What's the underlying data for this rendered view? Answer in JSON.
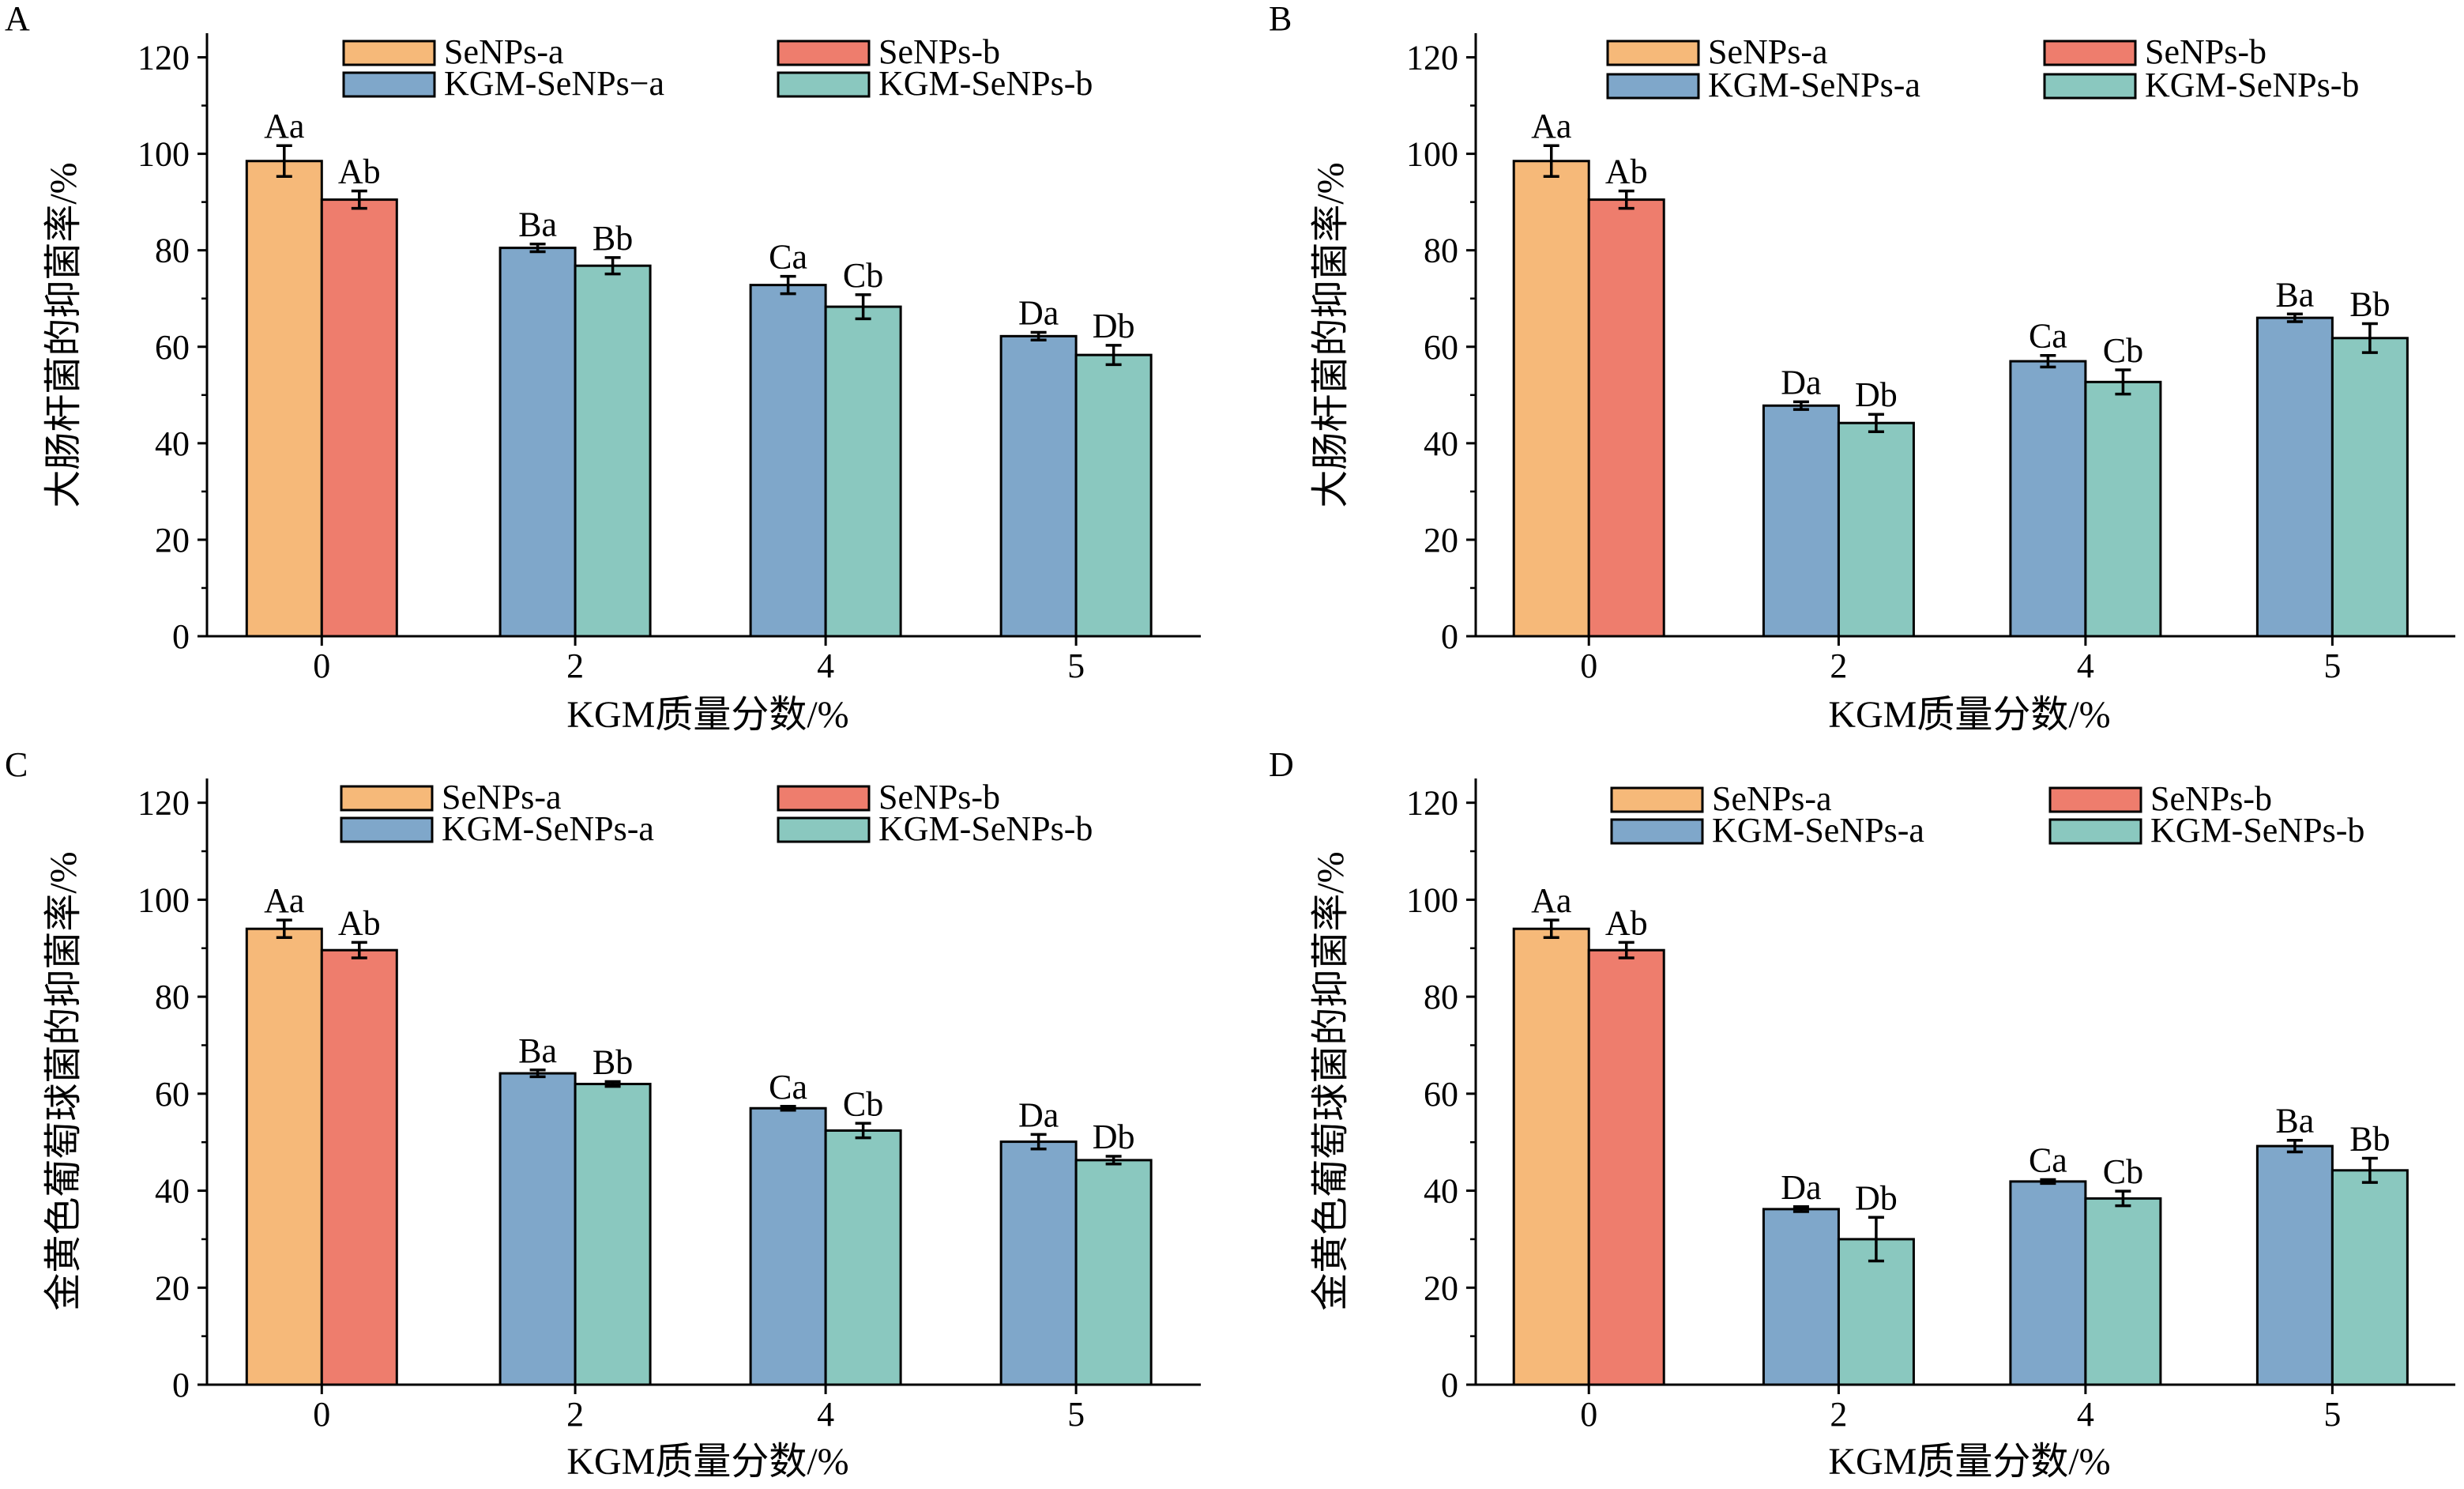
{
  "colors": {
    "SeNPs-a": "#f6b979",
    "SeNPs-b": "#ee7d6d",
    "KGM-SeNPs-a": "#7fa7ca",
    "KGM-SeNPs-b": "#8ac8bf"
  },
  "chart_data": [
    {
      "panel": "A",
      "type": "bar",
      "xlabel": "KGM质量分数/%",
      "ylabel": "大肠杆菌的抑菌率/%",
      "ylim": [
        0,
        125
      ],
      "yticks": [
        "0",
        "20",
        "40",
        "60",
        "80",
        "100",
        "120"
      ],
      "legend": [
        "SeNPs-a",
        "SeNPs-b",
        "KGM-SeNPs−a",
        "KGM-SeNPs-b"
      ],
      "legend_position": "top",
      "grid": false,
      "groups": [
        {
          "x": "0",
          "bars": [
            {
              "series": "SeNPs-a",
              "value": 98.5,
              "error": 3.2,
              "label": "Aa"
            },
            {
              "series": "SeNPs-b",
              "value": 90.5,
              "error": 1.8,
              "label": "Ab"
            }
          ]
        },
        {
          "x": "2",
          "bars": [
            {
              "series": "KGM-SeNPs-a",
              "value": 80.5,
              "error": 0.8,
              "label": "Ba"
            },
            {
              "series": "KGM-SeNPs-b",
              "value": 76.8,
              "error": 1.7,
              "label": "Bb"
            }
          ]
        },
        {
          "x": "4",
          "bars": [
            {
              "series": "KGM-SeNPs-a",
              "value": 72.8,
              "error": 1.8,
              "label": "Ca"
            },
            {
              "series": "KGM-SeNPs-b",
              "value": 68.3,
              "error": 2.5,
              "label": "Cb"
            }
          ]
        },
        {
          "x": "5",
          "bars": [
            {
              "series": "KGM-SeNPs-a",
              "value": 62.2,
              "error": 0.8,
              "label": "Da"
            },
            {
              "series": "KGM-SeNPs-b",
              "value": 58.3,
              "error": 2.0,
              "label": "Db"
            }
          ]
        }
      ]
    },
    {
      "panel": "B",
      "type": "bar",
      "xlabel": "KGM质量分数/%",
      "ylabel": "大肠杆菌的抑菌率/%",
      "ylim": [
        0,
        125
      ],
      "yticks": [
        "0",
        "20",
        "40",
        "60",
        "80",
        "100",
        "120"
      ],
      "legend": [
        "SeNPs-a",
        "SeNPs-b",
        "KGM-SeNPs-a",
        "KGM-SeNPs-b"
      ],
      "legend_position": "top",
      "grid": false,
      "groups": [
        {
          "x": "0",
          "bars": [
            {
              "series": "SeNPs-a",
              "value": 98.5,
              "error": 3.2,
              "label": "Aa"
            },
            {
              "series": "SeNPs-b",
              "value": 90.5,
              "error": 1.8,
              "label": "Ab"
            }
          ]
        },
        {
          "x": "2",
          "bars": [
            {
              "series": "KGM-SeNPs-a",
              "value": 47.8,
              "error": 0.8,
              "label": "Da"
            },
            {
              "series": "KGM-SeNPs-b",
              "value": 44.2,
              "error": 1.8,
              "label": "Db"
            }
          ]
        },
        {
          "x": "4",
          "bars": [
            {
              "series": "KGM-SeNPs-a",
              "value": 57.0,
              "error": 1.2,
              "label": "Ca"
            },
            {
              "series": "KGM-SeNPs-b",
              "value": 52.7,
              "error": 2.5,
              "label": "Cb"
            }
          ]
        },
        {
          "x": "5",
          "bars": [
            {
              "series": "KGM-SeNPs-a",
              "value": 66.0,
              "error": 0.8,
              "label": "Ba"
            },
            {
              "series": "KGM-SeNPs-b",
              "value": 61.8,
              "error": 3.0,
              "label": "Bb"
            }
          ]
        }
      ]
    },
    {
      "panel": "C",
      "type": "bar",
      "xlabel": "KGM质量分数/%",
      "ylabel": "金黄色葡萄球菌的抑菌率/%",
      "ylim": [
        0,
        125
      ],
      "yticks": [
        "0",
        "20",
        "40",
        "60",
        "80",
        "100",
        "120"
      ],
      "legend": [
        "SeNPs-a",
        "SeNPs-b",
        "KGM-SeNPs-a",
        "KGM-SeNPs-b"
      ],
      "legend_position": "top",
      "grid": false,
      "groups": [
        {
          "x": "0",
          "bars": [
            {
              "series": "SeNPs-a",
              "value": 94.0,
              "error": 1.8,
              "label": "Aa"
            },
            {
              "series": "SeNPs-b",
              "value": 89.6,
              "error": 1.6,
              "label": "Ab"
            }
          ]
        },
        {
          "x": "2",
          "bars": [
            {
              "series": "KGM-SeNPs-a",
              "value": 64.2,
              "error": 0.7,
              "label": "Ba"
            },
            {
              "series": "KGM-SeNPs-b",
              "value": 62.0,
              "error": 0.5,
              "label": "Bb"
            }
          ]
        },
        {
          "x": "4",
          "bars": [
            {
              "series": "KGM-SeNPs-a",
              "value": 57.0,
              "error": 0.4,
              "label": "Ca"
            },
            {
              "series": "KGM-SeNPs-b",
              "value": 52.4,
              "error": 1.5,
              "label": "Cb"
            }
          ]
        },
        {
          "x": "5",
          "bars": [
            {
              "series": "KGM-SeNPs-a",
              "value": 50.1,
              "error": 1.5,
              "label": "Da"
            },
            {
              "series": "KGM-SeNPs-b",
              "value": 46.3,
              "error": 0.8,
              "label": "Db"
            }
          ]
        }
      ]
    },
    {
      "panel": "D",
      "type": "bar",
      "xlabel": "KGM质量分数/%",
      "ylabel": "金黄色葡萄球菌的抑菌率/%",
      "ylim": [
        0,
        125
      ],
      "yticks": [
        "0",
        "20",
        "40",
        "60",
        "80",
        "100",
        "120"
      ],
      "legend": [
        "SeNPs-a",
        "SeNPs-b",
        "KGM-SeNPs-a",
        "KGM-SeNPs-b"
      ],
      "legend_position": "top",
      "grid": false,
      "groups": [
        {
          "x": "0",
          "bars": [
            {
              "series": "SeNPs-a",
              "value": 94.0,
              "error": 1.8,
              "label": "Aa"
            },
            {
              "series": "SeNPs-b",
              "value": 89.6,
              "error": 1.6,
              "label": "Ab"
            }
          ]
        },
        {
          "x": "2",
          "bars": [
            {
              "series": "KGM-SeNPs-a",
              "value": 36.2,
              "error": 0.5,
              "label": "Da"
            },
            {
              "series": "KGM-SeNPs-b",
              "value": 30.0,
              "error": 4.5,
              "label": "Db"
            }
          ]
        },
        {
          "x": "4",
          "bars": [
            {
              "series": "KGM-SeNPs-a",
              "value": 41.9,
              "error": 0.4,
              "label": "Ca"
            },
            {
              "series": "KGM-SeNPs-b",
              "value": 38.4,
              "error": 1.5,
              "label": "Cb"
            }
          ]
        },
        {
          "x": "5",
          "bars": [
            {
              "series": "KGM-SeNPs-a",
              "value": 49.2,
              "error": 1.2,
              "label": "Ba"
            },
            {
              "series": "KGM-SeNPs-b",
              "value": 44.2,
              "error": 2.5,
              "label": "Bb"
            }
          ]
        }
      ]
    }
  ]
}
